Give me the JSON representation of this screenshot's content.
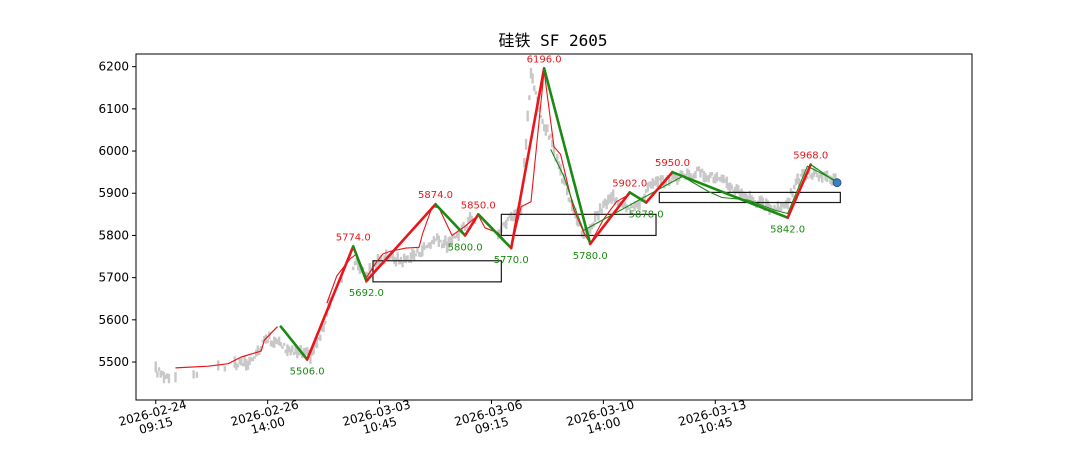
{
  "chart_data": {
    "type": "line",
    "title": "硅铁 SF 2605",
    "ylim": [
      5410,
      6230
    ],
    "y_ticks": [
      5500,
      5600,
      5700,
      5800,
      5900,
      6000,
      6100,
      6200
    ],
    "x_range": [
      -6,
      248
    ],
    "x_ticks": [
      {
        "x": 0,
        "label": [
          "2026-02-24",
          "09:15"
        ]
      },
      {
        "x": 34,
        "label": [
          "2026-02-26",
          "14:00"
        ]
      },
      {
        "x": 68,
        "label": [
          "2026-03-03",
          "10:45"
        ]
      },
      {
        "x": 102,
        "label": [
          "2026-03-06",
          "09:15"
        ]
      },
      {
        "x": 136,
        "label": [
          "2026-03-10",
          "14:00"
        ]
      },
      {
        "x": 170,
        "label": [
          "2026-03-13",
          "10:45"
        ]
      }
    ],
    "colors": {
      "up": "#e8161b",
      "down": "#1b8a12",
      "price": "#c8c8c8",
      "box": "#1a1a1a",
      "marker": "#3b7fc4"
    },
    "price_anchors": [
      [
        0,
        5480
      ],
      [
        3,
        5466
      ],
      [
        8,
        5470
      ],
      [
        14,
        5474
      ],
      [
        20,
        5486
      ],
      [
        26,
        5494
      ],
      [
        30,
        5502
      ],
      [
        33,
        5560
      ],
      [
        38,
        5540
      ],
      [
        42,
        5522
      ],
      [
        47,
        5516
      ],
      [
        50,
        5560
      ],
      [
        53,
        5640
      ],
      [
        57,
        5700
      ],
      [
        61,
        5740
      ],
      [
        64,
        5702
      ],
      [
        66,
        5726
      ],
      [
        70,
        5752
      ],
      [
        75,
        5738
      ],
      [
        80,
        5760
      ],
      [
        85,
        5790
      ],
      [
        89,
        5776
      ],
      [
        93,
        5812
      ],
      [
        96,
        5848
      ],
      [
        99,
        5822
      ],
      [
        102,
        5800
      ],
      [
        104,
        5806
      ],
      [
        108,
        5846
      ],
      [
        111,
        5860
      ],
      [
        114,
        6186
      ],
      [
        117,
        6080
      ],
      [
        120,
        6028
      ],
      [
        123,
        5946
      ],
      [
        127,
        5860
      ],
      [
        130,
        5796
      ],
      [
        133,
        5830
      ],
      [
        136,
        5870
      ],
      [
        139,
        5890
      ],
      [
        143,
        5872
      ],
      [
        146,
        5866
      ],
      [
        150,
        5915
      ],
      [
        155,
        5932
      ],
      [
        160,
        5940
      ],
      [
        165,
        5950
      ],
      [
        170,
        5936
      ],
      [
        175,
        5914
      ],
      [
        180,
        5890
      ],
      [
        185,
        5868
      ],
      [
        189,
        5860
      ],
      [
        192,
        5882
      ],
      [
        196,
        5940
      ],
      [
        200,
        5944
      ],
      [
        204,
        5938
      ],
      [
        207,
        5932
      ]
    ],
    "price_gaps": [
      [
        4,
        24
      ],
      [
        53,
        60
      ],
      [
        97,
        104
      ]
    ],
    "pivots": [
      {
        "x": 38,
        "y": 5584,
        "label": "",
        "pos": "none"
      },
      {
        "x": 46,
        "y": 5506,
        "label": "5506.0",
        "pos": "below"
      },
      {
        "x": 60,
        "y": 5774,
        "label": "5774.0",
        "pos": "above"
      },
      {
        "x": 64,
        "y": 5692,
        "label": "5692.0",
        "pos": "below"
      },
      {
        "x": 85,
        "y": 5874,
        "label": "5874.0",
        "pos": "above"
      },
      {
        "x": 94,
        "y": 5800,
        "label": "5800.0",
        "pos": "below"
      },
      {
        "x": 98,
        "y": 5850,
        "label": "5850.0",
        "pos": "above"
      },
      {
        "x": 108,
        "y": 5770,
        "label": "5770.0",
        "pos": "below"
      },
      {
        "x": 118,
        "y": 6196,
        "label": "6196.0",
        "pos": "above"
      },
      {
        "x": 132,
        "y": 5780,
        "label": "5780.0",
        "pos": "below"
      },
      {
        "x": 144,
        "y": 5902,
        "label": "5902.0",
        "pos": "above"
      },
      {
        "x": 149,
        "y": 5878,
        "label": "5878.0",
        "pos": "below"
      },
      {
        "x": 157,
        "y": 5950,
        "label": "5950.0",
        "pos": "above"
      },
      {
        "x": 192,
        "y": 5842,
        "label": "5842.0",
        "pos": "below"
      },
      {
        "x": 199,
        "y": 5968,
        "label": "5968.0",
        "pos": "above"
      },
      {
        "x": 207,
        "y": 5925,
        "label": "",
        "pos": "none"
      }
    ],
    "sub_trend_up": [
      [
        6,
        5486
      ],
      [
        16,
        5490
      ],
      [
        22,
        5496
      ],
      [
        26,
        5512
      ],
      [
        32,
        5526
      ],
      [
        33,
        5552
      ],
      [
        37,
        5584
      ]
    ],
    "sub_trend_mid": [
      [
        52,
        5640
      ],
      [
        55,
        5704
      ],
      [
        59,
        5744
      ],
      [
        61,
        5756
      ],
      [
        64,
        5700
      ],
      [
        67,
        5736
      ],
      [
        69,
        5756
      ],
      [
        71,
        5762
      ],
      [
        76,
        5770
      ],
      [
        80,
        5772
      ],
      [
        81,
        5802
      ],
      [
        84,
        5868
      ],
      [
        86,
        5866
      ],
      [
        90,
        5800
      ],
      [
        94,
        5822
      ],
      [
        98,
        5848
      ],
      [
        100,
        5818
      ],
      [
        104,
        5806
      ],
      [
        108,
        5770
      ],
      [
        111,
        5868
      ],
      [
        114,
        5880
      ],
      [
        118,
        6190
      ],
      [
        121,
        6010
      ],
      [
        123,
        5992
      ],
      [
        127,
        5862
      ],
      [
        130,
        5808
      ],
      [
        132,
        5780
      ],
      [
        136,
        5838
      ],
      [
        140,
        5880
      ],
      [
        144,
        5898
      ]
    ],
    "sub_trend_green": [
      [
        120,
        6004
      ],
      [
        124,
        5940
      ],
      [
        127,
        5872
      ],
      [
        130,
        5812
      ],
      [
        160,
        5940
      ],
      [
        168,
        5904
      ],
      [
        172,
        5890
      ],
      [
        180,
        5884
      ],
      [
        188,
        5860
      ],
      [
        192,
        5852
      ],
      [
        198,
        5964
      ],
      [
        207,
        5928
      ]
    ],
    "boxes": [
      {
        "x1": 66,
        "x2": 105,
        "y1": 5690,
        "y2": 5740
      },
      {
        "x1": 105,
        "x2": 152,
        "y1": 5800,
        "y2": 5850
      },
      {
        "x1": 153,
        "x2": 208,
        "y1": 5878,
        "y2": 5902
      }
    ]
  }
}
